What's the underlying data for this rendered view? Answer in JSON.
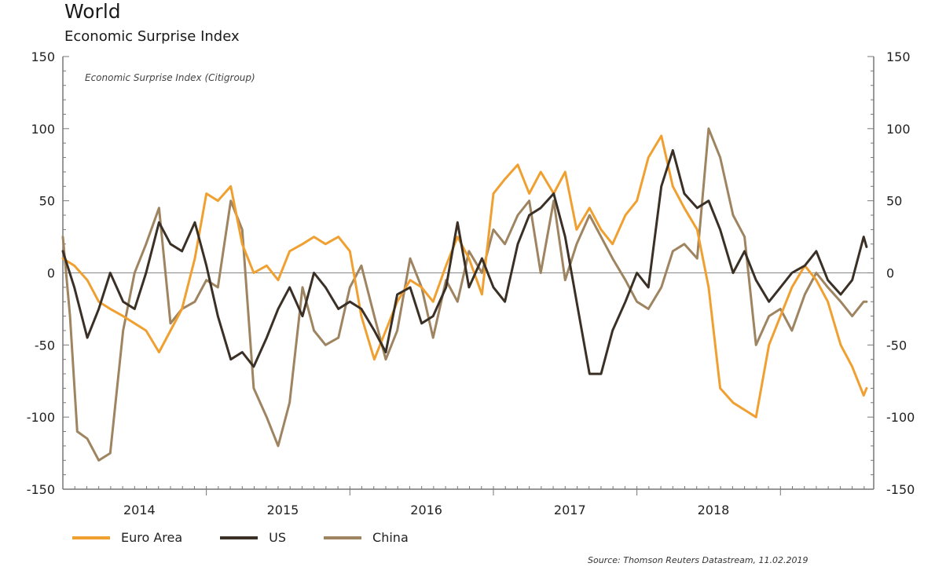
{
  "title": "World",
  "subtitle": "Economic Surprise Index",
  "source": "Source: Thomson Reuters Datastream, 11.02.2019",
  "chart_data": {
    "type": "line",
    "annotation": "Economic Surprise Index (Citigroup)",
    "ylim": [
      -150,
      150
    ],
    "yticks": [
      150,
      100,
      50,
      0,
      -50,
      -100,
      -150
    ],
    "xlim": [
      2013.5,
      2019.15
    ],
    "xticks": [
      {
        "label": "2014",
        "x": 2014.0
      },
      {
        "label": "2015",
        "x": 2015.0
      },
      {
        "label": "2016",
        "x": 2016.0
      },
      {
        "label": "2017",
        "x": 2017.0
      },
      {
        "label": "2018",
        "x": 2018.0
      }
    ],
    "legend_position": "bottom-left",
    "grid": false,
    "zero_line": true,
    "series": [
      {
        "name": "Euro Area",
        "color": "#f0a030",
        "x": [
          2013.5,
          2013.58,
          2013.67,
          2013.75,
          2013.83,
          2013.92,
          2014.0,
          2014.08,
          2014.17,
          2014.25,
          2014.33,
          2014.42,
          2014.5,
          2014.58,
          2014.67,
          2014.75,
          2014.83,
          2014.92,
          2015.0,
          2015.08,
          2015.17,
          2015.25,
          2015.33,
          2015.42,
          2015.5,
          2015.58,
          2015.67,
          2015.75,
          2015.83,
          2015.92,
          2016.0,
          2016.08,
          2016.17,
          2016.25,
          2016.33,
          2016.42,
          2016.5,
          2016.58,
          2016.67,
          2016.75,
          2016.83,
          2016.92,
          2017.0,
          2017.08,
          2017.17,
          2017.25,
          2017.33,
          2017.42,
          2017.5,
          2017.58,
          2017.67,
          2017.75,
          2017.83,
          2017.92,
          2018.0,
          2018.08,
          2018.17,
          2018.25,
          2018.33,
          2018.42,
          2018.5,
          2018.58,
          2018.67,
          2018.75,
          2018.83,
          2018.92,
          2019.0,
          2019.08,
          2019.1
        ],
        "values": [
          10,
          5,
          -5,
          -20,
          -25,
          -30,
          -35,
          -40,
          -55,
          -40,
          -25,
          10,
          55,
          50,
          60,
          20,
          0,
          5,
          -5,
          15,
          20,
          25,
          20,
          25,
          15,
          -30,
          -60,
          -40,
          -20,
          -5,
          -10,
          -20,
          5,
          25,
          10,
          -15,
          55,
          65,
          75,
          55,
          70,
          55,
          70,
          30,
          45,
          30,
          20,
          40,
          50,
          80,
          95,
          60,
          45,
          30,
          -10,
          -80,
          -90,
          -95,
          -100,
          -50,
          -30,
          -10,
          5,
          -5,
          -20,
          -50,
          -65,
          -85,
          -80
        ]
      },
      {
        "name": "US",
        "color": "#3a3026",
        "x": [
          2013.5,
          2013.58,
          2013.67,
          2013.75,
          2013.83,
          2013.92,
          2014.0,
          2014.08,
          2014.17,
          2014.25,
          2014.33,
          2014.42,
          2014.5,
          2014.58,
          2014.67,
          2014.75,
          2014.83,
          2014.92,
          2015.0,
          2015.08,
          2015.17,
          2015.25,
          2015.33,
          2015.42,
          2015.5,
          2015.58,
          2015.67,
          2015.75,
          2015.83,
          2015.92,
          2016.0,
          2016.08,
          2016.17,
          2016.25,
          2016.33,
          2016.42,
          2016.5,
          2016.58,
          2016.67,
          2016.75,
          2016.83,
          2016.92,
          2017.0,
          2017.08,
          2017.17,
          2017.25,
          2017.33,
          2017.42,
          2017.5,
          2017.58,
          2017.67,
          2017.75,
          2017.83,
          2017.92,
          2018.0,
          2018.08,
          2018.17,
          2018.25,
          2018.33,
          2018.42,
          2018.5,
          2018.58,
          2018.67,
          2018.75,
          2018.83,
          2018.92,
          2019.0,
          2019.08,
          2019.1
        ],
        "values": [
          15,
          -10,
          -45,
          -25,
          0,
          -20,
          -25,
          0,
          35,
          20,
          15,
          35,
          5,
          -30,
          -60,
          -55,
          -65,
          -45,
          -25,
          -10,
          -30,
          0,
          -10,
          -25,
          -20,
          -25,
          -40,
          -55,
          -15,
          -10,
          -35,
          -30,
          -10,
          35,
          -10,
          10,
          -10,
          -20,
          20,
          40,
          45,
          55,
          25,
          -20,
          -70,
          -70,
          -40,
          -20,
          0,
          -10,
          60,
          85,
          55,
          45,
          50,
          30,
          0,
          15,
          -5,
          -20,
          -10,
          0,
          5,
          15,
          -5,
          -15,
          -5,
          25,
          18
        ]
      },
      {
        "name": "China",
        "color": "#9e8460",
        "x": [
          2013.5,
          2013.55,
          2013.6,
          2013.67,
          2013.75,
          2013.83,
          2013.92,
          2014.0,
          2014.08,
          2014.17,
          2014.25,
          2014.33,
          2014.42,
          2014.5,
          2014.58,
          2014.67,
          2014.75,
          2014.83,
          2014.92,
          2015.0,
          2015.08,
          2015.17,
          2015.25,
          2015.33,
          2015.42,
          2015.5,
          2015.58,
          2015.67,
          2015.75,
          2015.83,
          2015.92,
          2016.0,
          2016.08,
          2016.17,
          2016.25,
          2016.33,
          2016.42,
          2016.5,
          2016.58,
          2016.67,
          2016.75,
          2016.83,
          2016.92,
          2017.0,
          2017.08,
          2017.17,
          2017.25,
          2017.33,
          2017.42,
          2017.5,
          2017.58,
          2017.67,
          2017.75,
          2017.83,
          2017.92,
          2018.0,
          2018.08,
          2018.17,
          2018.25,
          2018.33,
          2018.42,
          2018.5,
          2018.58,
          2018.67,
          2018.75,
          2018.83,
          2018.92,
          2019.0,
          2019.08,
          2019.1
        ],
        "values": [
          25,
          -30,
          -110,
          -115,
          -130,
          -125,
          -40,
          0,
          20,
          45,
          -35,
          -25,
          -20,
          -5,
          -10,
          50,
          30,
          -80,
          -100,
          -120,
          -90,
          -10,
          -40,
          -50,
          -45,
          -10,
          5,
          -30,
          -60,
          -40,
          10,
          -10,
          -45,
          -5,
          -20,
          15,
          0,
          30,
          20,
          40,
          50,
          0,
          50,
          -5,
          20,
          40,
          25,
          10,
          -5,
          -20,
          -25,
          -10,
          15,
          20,
          10,
          100,
          80,
          40,
          25,
          -50,
          -30,
          -25,
          -40,
          -15,
          0,
          -10,
          -20,
          -30,
          -20,
          -20
        ]
      }
    ]
  }
}
